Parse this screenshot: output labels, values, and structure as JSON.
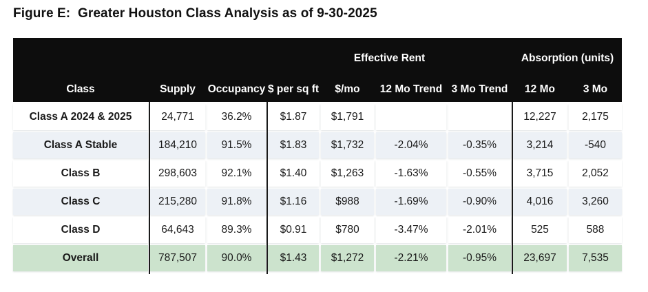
{
  "title": "Figure E:  Greater Houston Class Analysis as of 9-30-2025",
  "table": {
    "group_headers": {
      "effective_rent": "Effective Rent",
      "absorption": "Absorption (units)"
    },
    "columns": {
      "class": "Class",
      "supply": "Supply",
      "occupancy": "Occupancy",
      "per_sqft": "$ per sq ft",
      "per_mo": "$/mo",
      "trend_12mo": "12 Mo Trend",
      "trend_3mo": "3 Mo Trend",
      "abs_12mo": "12 Mo",
      "abs_3mo": "3 Mo"
    },
    "rows": [
      {
        "class": "Class A 2024 & 2025",
        "supply": "24,771",
        "occupancy": "36.2%",
        "per_sqft": "$1.87",
        "per_mo": "$1,791",
        "trend_12mo": "",
        "trend_3mo": "",
        "abs_12mo": "12,227",
        "abs_3mo": "2,175"
      },
      {
        "class": "Class A Stable",
        "supply": "184,210",
        "occupancy": "91.5%",
        "per_sqft": "$1.83",
        "per_mo": "$1,732",
        "trend_12mo": "-2.04%",
        "trend_3mo": "-0.35%",
        "abs_12mo": "3,214",
        "abs_3mo": "-540"
      },
      {
        "class": "Class B",
        "supply": "298,603",
        "occupancy": "92.1%",
        "per_sqft": "$1.40",
        "per_mo": "$1,263",
        "trend_12mo": "-1.63%",
        "trend_3mo": "-0.55%",
        "abs_12mo": "3,715",
        "abs_3mo": "2,052"
      },
      {
        "class": "Class C",
        "supply": "215,280",
        "occupancy": "91.8%",
        "per_sqft": "$1.16",
        "per_mo": "$988",
        "trend_12mo": "-1.69%",
        "trend_3mo": "-0.90%",
        "abs_12mo": "4,016",
        "abs_3mo": "3,260"
      },
      {
        "class": "Class D",
        "supply": "64,643",
        "occupancy": "89.3%",
        "per_sqft": "$0.91",
        "per_mo": "$780",
        "trend_12mo": "-3.47%",
        "trend_3mo": "-2.01%",
        "abs_12mo": "525",
        "abs_3mo": "588"
      },
      {
        "class": "Overall",
        "supply": "787,507",
        "occupancy": "90.0%",
        "per_sqft": "$1.43",
        "per_mo": "$1,272",
        "trend_12mo": "-2.21%",
        "trend_3mo": "-0.95%",
        "abs_12mo": "23,697",
        "abs_3mo": "7,535"
      }
    ]
  },
  "colors": {
    "header_bg": "#0d0d0d",
    "alt_row_bg": "#edf1f6",
    "total_row_bg": "#cce3cd",
    "rule": "#1a1a1a"
  }
}
